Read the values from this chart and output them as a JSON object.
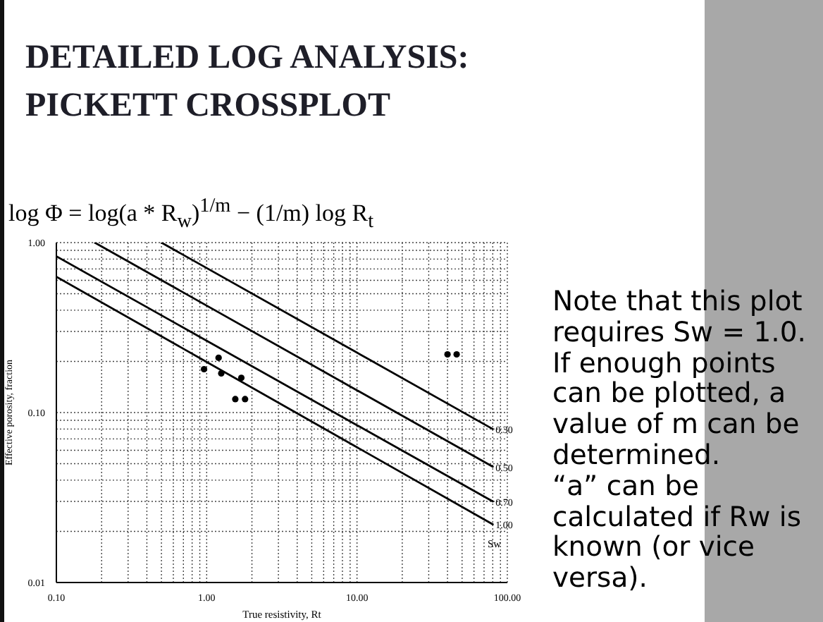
{
  "chart_data": {
    "type": "scatter",
    "title": "DETAILED LOG ANALYSIS: PICKETT CROSSPLOT",
    "xlabel": "True resistivity, Rt",
    "ylabel": "Effective porosity, fraction",
    "annotations": [
      "log Φ = log(a * R$_{w}$)$^{1/m}$ − (1/m) log R$_{t}$",
      "Note that this plot requires Sw = 1.0.",
      "If enough points can be plotted, a value of m can be determined.",
      "“a” can be calculated if Rw is known (or vice versa).",
      "Sw"
    ],
    "series": [
      {
        "type": "line",
        "name": "0.30",
        "color": "#000000",
        "marker": "none",
        "x": [
          0.5,
          80
        ],
        "values": [
          1.0,
          0.08
        ]
      },
      {
        "type": "line",
        "name": "0.50",
        "color": "#000000",
        "marker": "none",
        "x": [
          0.18,
          80
        ],
        "values": [
          1.0,
          0.048
        ]
      },
      {
        "type": "line",
        "name": "0.70",
        "color": "#000000",
        "marker": "none",
        "x": [
          0.1,
          80
        ],
        "values": [
          0.83,
          0.03
        ]
      },
      {
        "type": "line",
        "name": "1.00",
        "color": "#000000",
        "marker": "none",
        "x": [
          0.1,
          80
        ],
        "values": [
          0.63,
          0.022
        ]
      },
      {
        "type": "scatter",
        "color": "#000000",
        "marker": "circle",
        "x": [
          0.96,
          1.2,
          1.25,
          1.7,
          1.55,
          1.8,
          40,
          46
        ],
        "values": [
          0.18,
          0.21,
          0.17,
          0.16,
          0.12,
          0.12,
          0.22,
          0.22
        ]
      }
    ],
    "log": "xy",
    "xlim": [
      0.1,
      100
    ],
    "ylim": [
      0.01,
      1
    ],
    "xticks": [
      {
        "value": 0.1,
        "label": "0.10"
      },
      {
        "value": 0.2,
        "label": null
      },
      {
        "value": 0.3,
        "label": null
      },
      {
        "value": 0.4,
        "label": null
      },
      {
        "value": 0.5,
        "label": null
      },
      {
        "value": 0.6,
        "label": null
      },
      {
        "value": 0.7,
        "label": null
      },
      {
        "value": 0.8,
        "label": null
      },
      {
        "value": 0.9,
        "label": null
      },
      {
        "value": 1,
        "label": "1.00"
      },
      {
        "value": 2,
        "label": null
      },
      {
        "value": 3,
        "label": null
      },
      {
        "value": 4,
        "label": null
      },
      {
        "value": 5,
        "label": null
      },
      {
        "value": 6,
        "label": null
      },
      {
        "value": 7,
        "label": null
      },
      {
        "value": 8,
        "label": null
      },
      {
        "value": 9,
        "label": null
      },
      {
        "value": 10,
        "label": "10.00"
      },
      {
        "value": 20,
        "label": null
      },
      {
        "value": 30,
        "label": null
      },
      {
        "value": 40,
        "label": null
      },
      {
        "value": 50,
        "label": null
      },
      {
        "value": 60,
        "label": null
      },
      {
        "value": 70,
        "label": null
      },
      {
        "value": 80,
        "label": null
      },
      {
        "value": 90,
        "label": null
      },
      {
        "value": 100,
        "label": "100.00"
      }
    ],
    "yticks": [
      {
        "value": 0.01,
        "label": "0.01"
      },
      {
        "value": 0.02,
        "label": null
      },
      {
        "value": 0.03,
        "label": null
      },
      {
        "value": 0.04,
        "label": null
      },
      {
        "value": 0.05,
        "label": null
      },
      {
        "value": 0.06,
        "label": null
      },
      {
        "value": 0.07,
        "label": null
      },
      {
        "value": 0.08,
        "label": null
      },
      {
        "value": 0.09,
        "label": null
      },
      {
        "value": 0.1,
        "label": "0.10"
      },
      {
        "value": 0.2,
        "label": null
      },
      {
        "value": 0.3,
        "label": null
      },
      {
        "value": 0.4,
        "label": null
      },
      {
        "value": 0.5,
        "label": null
      },
      {
        "value": 0.6,
        "label": null
      },
      {
        "value": 0.7,
        "label": null
      },
      {
        "value": 0.8,
        "label": null
      },
      {
        "value": 0.9,
        "label": null
      },
      {
        "value": 1,
        "label": "1.00"
      }
    ],
    "grid": true,
    "line_style": "solid"
  }
}
